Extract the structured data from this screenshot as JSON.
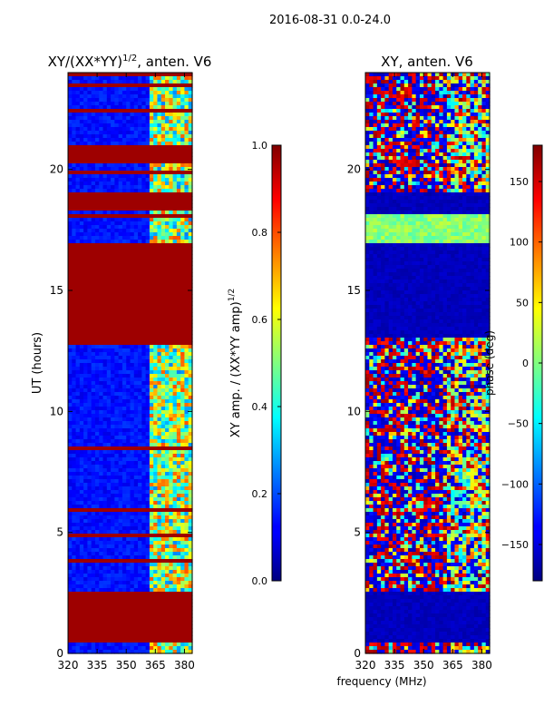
{
  "figure": {
    "suptitle": "2016-08-31 0.0-24.0",
    "shared_xlabel": "frequency (MHz)"
  },
  "chart_data": [
    {
      "type": "heatmap",
      "title": "XY/(XX*YY)",
      "title_exponent": "1/2",
      "title_suffix": ", anten. V6",
      "xlabel": "",
      "ylabel": "UT (hours)",
      "x_ticks": [
        "320",
        "335",
        "350",
        "365",
        "380"
      ],
      "x_tick_values": [
        320,
        335,
        350,
        365,
        380
      ],
      "xlim": [
        320,
        384
      ],
      "y_ticks": [
        "0",
        "5",
        "10",
        "15",
        "20"
      ],
      "y_tick_values": [
        0,
        5,
        10,
        15,
        20
      ],
      "ylim": [
        0,
        24
      ],
      "colormap": "jet",
      "saturated_bands_hours": [
        [
          0.4,
          2.5
        ],
        [
          13.0,
          17.0
        ],
        [
          18.3,
          19.0
        ],
        [
          20.2,
          21.0
        ]
      ],
      "colorbar": {
        "label": "XY amp. / (XX*YY amp)",
        "label_exponent": "1/2",
        "ticks": [
          "0.0",
          "0.2",
          "0.4",
          "0.6",
          "0.8",
          "1.0"
        ],
        "tick_values": [
          0.0,
          0.2,
          0.4,
          0.6,
          0.8,
          1.0
        ],
        "range": [
          0.0,
          1.0
        ]
      }
    },
    {
      "type": "heatmap",
      "title": "XY, anten. V6",
      "xlabel": "frequency (MHz)",
      "ylabel": "",
      "x_ticks": [
        "320",
        "335",
        "350",
        "365",
        "380"
      ],
      "x_tick_values": [
        320,
        335,
        350,
        365,
        380
      ],
      "xlim": [
        320,
        384
      ],
      "y_ticks": [
        "0",
        "5",
        "10",
        "15",
        "20"
      ],
      "y_tick_values": [
        0,
        5,
        10,
        15,
        20
      ],
      "ylim": [
        0,
        24
      ],
      "colormap": "jet",
      "colorbar": {
        "label": "phase (deg)",
        "ticks": [
          "−150",
          "−100",
          "−50",
          "0",
          "50",
          "100",
          "150"
        ],
        "tick_values": [
          -150,
          -100,
          -50,
          0,
          50,
          100,
          150
        ],
        "range": [
          -180,
          180
        ]
      }
    }
  ]
}
